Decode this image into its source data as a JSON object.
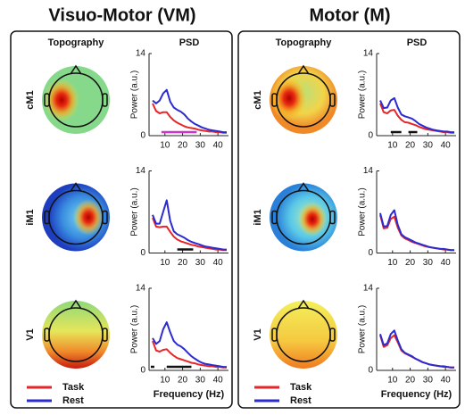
{
  "panels": [
    {
      "title": "Visuo-Motor (VM)",
      "column_headers": [
        "Topography",
        "PSD"
      ],
      "row_labels": [
        "cM1",
        "iM1",
        "V1"
      ]
    },
    {
      "title": "Motor (M)",
      "column_headers": [
        "Topography",
        "PSD"
      ],
      "row_labels": [
        "cM1",
        "iM1",
        "V1"
      ]
    }
  ],
  "chart_data": [
    {
      "type": "line",
      "ylabel": "Power (a.u.)",
      "xlim": [
        1,
        46
      ],
      "xticks": [
        10,
        20,
        30,
        40
      ],
      "ylim": [
        0,
        14
      ],
      "yticks": [
        0,
        14
      ],
      "x": [
        3,
        5,
        7,
        9,
        11,
        13,
        15,
        17,
        19,
        21,
        23,
        25,
        27,
        29,
        31,
        33,
        35,
        37,
        39,
        41,
        43,
        45
      ],
      "series": [
        {
          "color": "#e8262a",
          "values": [
            5.5,
            4.2,
            3.8,
            4.0,
            4.0,
            3.2,
            2.6,
            2.2,
            1.9,
            1.6,
            1.4,
            1.3,
            1.2,
            1.0,
            0.9,
            0.8,
            0.7,
            0.7,
            0.6,
            0.6,
            0.5,
            0.5
          ]
        },
        {
          "color": "#2b2bd0",
          "values": [
            6.0,
            5.5,
            6.0,
            7.2,
            7.8,
            5.8,
            4.8,
            4.4,
            4.1,
            3.6,
            2.9,
            2.4,
            2.0,
            1.7,
            1.4,
            1.2,
            1.0,
            0.9,
            0.8,
            0.7,
            0.6,
            0.6
          ]
        }
      ],
      "significance": [
        {
          "x": [
            8,
            28
          ],
          "color": "#cc33cc"
        }
      ]
    },
    {
      "type": "line",
      "ylabel": "Power (a.u.)",
      "xlim": [
        1,
        46
      ],
      "xticks": [
        10,
        20,
        30,
        40
      ],
      "ylim": [
        0,
        14
      ],
      "yticks": [
        0,
        14
      ],
      "x": [
        3,
        5,
        7,
        9,
        11,
        13,
        15,
        17,
        19,
        21,
        23,
        25,
        27,
        29,
        31,
        33,
        35,
        37,
        39,
        41,
        43,
        45
      ],
      "series": [
        {
          "color": "#e8262a",
          "values": [
            6.0,
            4.5,
            4.4,
            4.5,
            4.5,
            3.6,
            2.8,
            2.3,
            2.0,
            1.8,
            1.6,
            1.4,
            1.3,
            1.1,
            1.0,
            0.9,
            0.8,
            0.7,
            0.6,
            0.6,
            0.5,
            0.5
          ]
        },
        {
          "color": "#2b2bd0",
          "values": [
            6.5,
            5.0,
            5.0,
            7.0,
            9.0,
            5.5,
            3.7,
            3.2,
            2.9,
            2.6,
            2.2,
            1.9,
            1.7,
            1.5,
            1.3,
            1.1,
            1.0,
            0.9,
            0.8,
            0.7,
            0.6,
            0.6
          ]
        }
      ],
      "significance": [
        {
          "x": [
            17,
            26
          ],
          "color": "#111111"
        }
      ]
    },
    {
      "type": "line",
      "ylabel": "Power (a.u.)",
      "xlabel": "Frequency (Hz)",
      "xlim": [
        1,
        46
      ],
      "xticks": [
        10,
        20,
        30,
        40
      ],
      "ylim": [
        0,
        14
      ],
      "yticks": [
        0,
        14
      ],
      "x": [
        3,
        5,
        7,
        9,
        11,
        13,
        15,
        17,
        19,
        21,
        23,
        25,
        27,
        29,
        31,
        33,
        35,
        37,
        39,
        41,
        43,
        45
      ],
      "series": [
        {
          "name": "Task",
          "color": "#e8262a",
          "values": [
            5.0,
            3.4,
            3.2,
            3.5,
            3.6,
            3.0,
            2.5,
            2.1,
            1.9,
            1.7,
            1.5,
            1.3,
            1.2,
            1.0,
            0.9,
            0.8,
            0.7,
            0.7,
            0.6,
            0.6,
            0.5,
            0.5
          ]
        },
        {
          "name": "Rest",
          "color": "#2b2bd0",
          "values": [
            5.5,
            4.5,
            5.0,
            7.0,
            8.2,
            6.5,
            5.0,
            4.4,
            4.1,
            3.6,
            3.0,
            2.4,
            2.0,
            1.6,
            1.3,
            1.1,
            1.0,
            0.9,
            0.8,
            0.7,
            0.6,
            0.6
          ]
        }
      ],
      "significance": [
        {
          "x": [
            2,
            4
          ],
          "color": "#111111"
        },
        {
          "x": [
            11,
            25
          ],
          "color": "#111111"
        }
      ]
    },
    {
      "type": "line",
      "ylabel": "Power (a.u.)",
      "xlim": [
        1,
        46
      ],
      "xticks": [
        10,
        20,
        30,
        40
      ],
      "ylim": [
        0,
        14
      ],
      "yticks": [
        0,
        14
      ],
      "x": [
        3,
        5,
        7,
        9,
        11,
        13,
        15,
        17,
        19,
        21,
        23,
        25,
        27,
        29,
        31,
        33,
        35,
        37,
        39,
        41,
        43,
        45
      ],
      "series": [
        {
          "color": "#e8262a",
          "values": [
            5.5,
            4.0,
            3.8,
            4.3,
            4.4,
            3.4,
            2.7,
            2.3,
            2.2,
            2.0,
            1.8,
            1.5,
            1.3,
            1.1,
            1.0,
            0.9,
            0.8,
            0.7,
            0.6,
            0.6,
            0.5,
            0.5
          ]
        },
        {
          "color": "#2b2bd0",
          "values": [
            6.0,
            4.7,
            4.8,
            6.0,
            6.4,
            4.8,
            3.6,
            3.3,
            3.1,
            2.9,
            2.5,
            2.0,
            1.7,
            1.4,
            1.2,
            1.0,
            0.9,
            0.8,
            0.7,
            0.7,
            0.6,
            0.6
          ]
        }
      ],
      "significance": [
        {
          "x": [
            9,
            15
          ],
          "color": "#111111"
        },
        {
          "x": [
            19,
            24
          ],
          "color": "#111111"
        }
      ]
    },
    {
      "type": "line",
      "ylabel": "Power (a.u.)",
      "xlim": [
        1,
        46
      ],
      "xticks": [
        10,
        20,
        30,
        40
      ],
      "ylim": [
        0,
        14
      ],
      "yticks": [
        0,
        14
      ],
      "x": [
        3,
        5,
        7,
        9,
        11,
        13,
        15,
        17,
        19,
        21,
        23,
        25,
        27,
        29,
        31,
        33,
        35,
        37,
        39,
        41,
        43,
        45
      ],
      "series": [
        {
          "color": "#e8262a",
          "values": [
            6.5,
            4.2,
            4.3,
            5.8,
            6.2,
            4.3,
            3.0,
            2.5,
            2.2,
            1.9,
            1.7,
            1.5,
            1.3,
            1.1,
            1.0,
            0.9,
            0.8,
            0.7,
            0.6,
            0.6,
            0.5,
            0.5
          ]
        },
        {
          "color": "#2b2bd0",
          "values": [
            6.8,
            4.5,
            4.6,
            6.5,
            7.3,
            4.8,
            3.2,
            2.7,
            2.4,
            2.1,
            1.8,
            1.6,
            1.4,
            1.2,
            1.0,
            0.9,
            0.8,
            0.7,
            0.7,
            0.6,
            0.5,
            0.5
          ]
        }
      ]
    },
    {
      "type": "line",
      "ylabel": "Power (a.u.)",
      "xlabel": "Frequency (Hz)",
      "xlim": [
        1,
        46
      ],
      "xticks": [
        10,
        20,
        30,
        40
      ],
      "ylim": [
        0,
        14
      ],
      "yticks": [
        0,
        14
      ],
      "x": [
        3,
        5,
        7,
        9,
        11,
        13,
        15,
        17,
        19,
        21,
        23,
        25,
        27,
        29,
        31,
        33,
        35,
        37,
        39,
        41,
        43,
        45
      ],
      "series": [
        {
          "name": "Task",
          "color": "#e8262a",
          "values": [
            6.0,
            4.0,
            4.3,
            5.5,
            6.0,
            4.8,
            3.4,
            2.9,
            2.6,
            2.3,
            2.0,
            1.7,
            1.4,
            1.2,
            1.0,
            0.9,
            0.8,
            0.7,
            0.6,
            0.6,
            0.5,
            0.5
          ]
        },
        {
          "name": "Rest",
          "color": "#2b2bd0",
          "values": [
            6.2,
            4.3,
            4.6,
            6.2,
            6.8,
            5.1,
            3.6,
            3.0,
            2.7,
            2.4,
            2.0,
            1.7,
            1.4,
            1.2,
            1.0,
            0.9,
            0.8,
            0.7,
            0.7,
            0.6,
            0.5,
            0.5
          ]
        }
      ]
    }
  ]
}
